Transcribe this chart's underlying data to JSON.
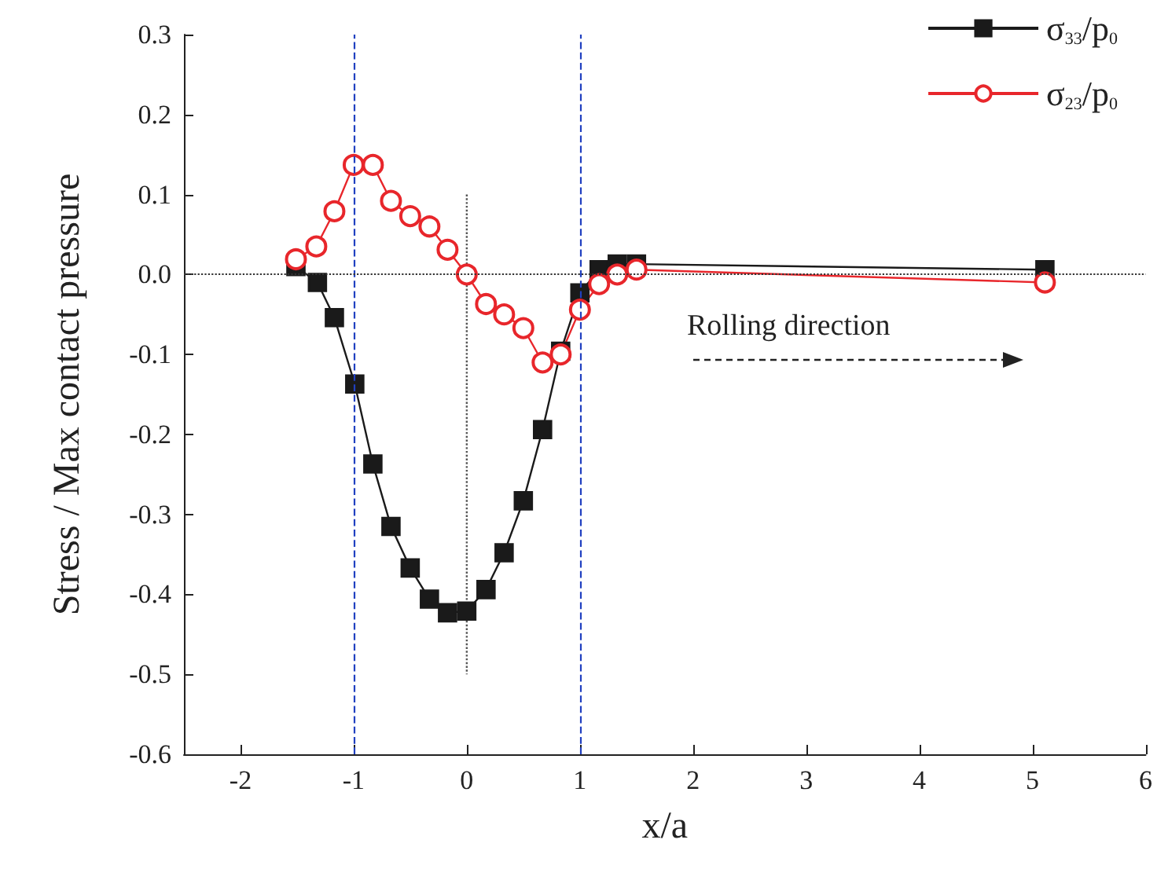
{
  "chart_data": {
    "type": "line",
    "xlabel": "x/a",
    "ylabel": "Stress / Max contact pressure",
    "xlim": [
      -2.5,
      6
    ],
    "xticks": [
      -2,
      -1,
      0,
      1,
      2,
      3,
      4,
      5,
      6
    ],
    "ylim": [
      -0.6,
      0.3
    ],
    "yticks": [
      -0.6,
      -0.5,
      -0.4,
      -0.3,
      -0.2,
      -0.1,
      {
        "value": 0,
        "label": "0.0"
      },
      0.1,
      0.2,
      0.3
    ],
    "grid": false,
    "legend": "top right",
    "series": [
      {
        "name": "σ$_{33}$/p$_{0}$",
        "color": "#1a1a1a",
        "marker": "square",
        "x": [
          -1.51,
          -1.32,
          -1.17,
          -0.99,
          -0.83,
          -0.67,
          -0.5,
          -0.33,
          -0.17,
          0,
          0.17,
          0.33,
          0.5,
          0.67,
          0.83,
          1.0,
          1.17,
          1.33,
          1.5,
          5.11
        ],
        "values": [
          0.01,
          -0.01,
          -0.054,
          -0.137,
          -0.237,
          -0.315,
          -0.367,
          -0.406,
          -0.423,
          -0.421,
          -0.394,
          -0.348,
          -0.283,
          -0.194,
          -0.096,
          -0.023,
          0.006,
          0.013,
          0.013,
          0.006
        ]
      },
      {
        "name": "σ$_{23}$/p$_{0}$",
        "color": "#e8262b",
        "marker": "circle",
        "x": [
          -1.51,
          -1.33,
          -1.17,
          -1.0,
          -0.83,
          -0.67,
          -0.5,
          -0.33,
          -0.17,
          0,
          0.17,
          0.33,
          0.5,
          0.67,
          0.83,
          1.0,
          1.17,
          1.33,
          1.5,
          5.11
        ],
        "values": [
          0.019,
          0.035,
          0.079,
          0.137,
          0.137,
          0.092,
          0.073,
          0.06,
          0.031,
          0,
          -0.037,
          -0.05,
          -0.067,
          -0.11,
          -0.1,
          -0.044,
          -0.012,
          0,
          0.006,
          -0.01
        ]
      },
      {
        "color": "#555555",
        "marker": "none",
        "line_style": "dotted",
        "x": [
          0,
          0
        ],
        "values": [
          0.1,
          -0.5
        ]
      }
    ],
    "ref_lines": [
      {
        "axis": "x",
        "value": -1,
        "color": "#2040c0",
        "line_style": "dashed"
      },
      {
        "axis": "x",
        "value": 1,
        "color": "#2040c0",
        "line_style": "dashed"
      },
      {
        "axis": "y",
        "value": 0,
        "color": "#333333",
        "line_style": "dotted"
      }
    ],
    "annotations": [
      "Rolling direction"
    ]
  }
}
